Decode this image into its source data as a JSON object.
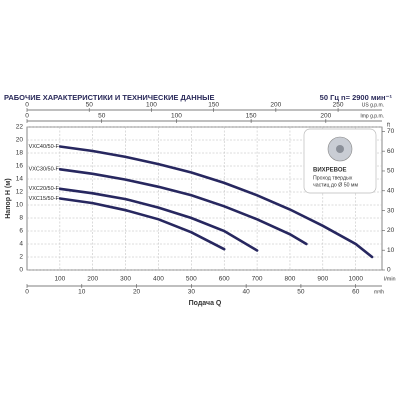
{
  "chart_data": {
    "type": "line",
    "title": "РАБОЧИЕ ХАРАКТЕРИСТИКИ И ТЕХНИЧЕСКИЕ ДАННЫЕ",
    "subtitle": "50 Гц   n= 2900 мин⁻¹",
    "x_label": "Подача Q",
    "x_unit": "l/min",
    "y_label": "Напор H (м)",
    "xlim": [
      0,
      1080
    ],
    "xticks": [
      100,
      200,
      300,
      400,
      500,
      600,
      700,
      800,
      900,
      1000
    ],
    "ylim": [
      0,
      22
    ],
    "yticks": [
      0,
      2,
      4,
      6,
      8,
      10,
      12,
      14,
      16,
      18,
      20,
      22
    ],
    "grid": true,
    "x2_label": "US g.p.m.",
    "x2lim": [
      0,
      285.3
    ],
    "x2ticks": [
      0,
      50,
      100,
      150,
      200,
      250
    ],
    "x3_label": "Imp g.p.m.",
    "x3lim": [
      0,
      237.6
    ],
    "x3ticks": [
      0,
      50,
      100,
      150,
      200
    ],
    "x4_label": "m³/h",
    "x4lim": [
      0,
      64.8
    ],
    "x4ticks": [
      0,
      10,
      20,
      30,
      40,
      50,
      60
    ],
    "y2_label": "ft",
    "y2lim": [
      0,
      72.2
    ],
    "y2ticks": [
      0,
      10,
      20,
      30,
      40,
      50,
      60,
      70
    ],
    "annotation_title": "ВИХРЕВОЕ",
    "annotation_lines": [
      "Проход твердых",
      "частиц до Ø 50 мм"
    ],
    "series": [
      {
        "name": "VXC40/50-F",
        "color": "#27275f",
        "x": [
          100,
          200,
          300,
          400,
          500,
          600,
          700,
          800,
          900,
          1000,
          1050
        ],
        "values": [
          19,
          18.3,
          17.4,
          16.3,
          15,
          13.4,
          11.5,
          9.3,
          6.8,
          4,
          2
        ]
      },
      {
        "name": "VXC30/50-F",
        "color": "#27275f",
        "x": [
          100,
          200,
          300,
          400,
          500,
          600,
          700,
          800,
          850
        ],
        "values": [
          15.5,
          14.8,
          13.9,
          12.8,
          11.5,
          9.8,
          7.8,
          5.5,
          4
        ]
      },
      {
        "name": "VXC20/50-F",
        "color": "#27275f",
        "x": [
          100,
          200,
          300,
          400,
          500,
          600,
          700
        ],
        "values": [
          12.5,
          11.8,
          10.9,
          9.6,
          8,
          6,
          3
        ]
      },
      {
        "name": "VXC15/50-F",
        "color": "#27275f",
        "x": [
          100,
          200,
          300,
          400,
          500,
          600
        ],
        "values": [
          11,
          10.3,
          9.2,
          7.8,
          5.8,
          3.2
        ]
      }
    ]
  }
}
